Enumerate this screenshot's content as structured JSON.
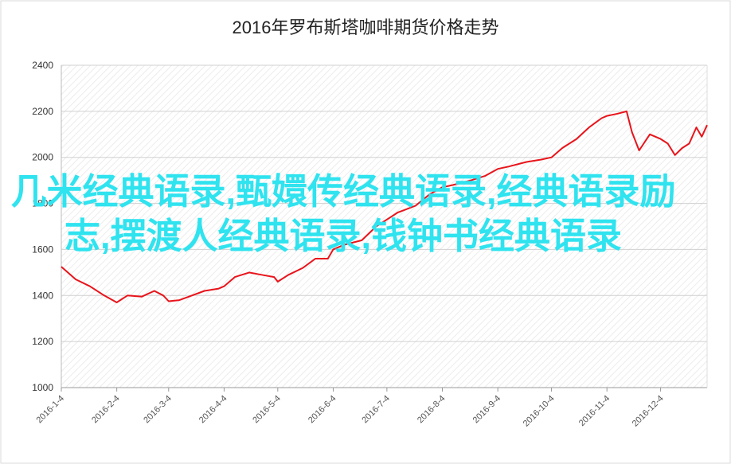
{
  "chart_data": {
    "type": "line",
    "title": "2016年罗布斯塔咖啡期货价格走势",
    "x": [
      "2016-1-4",
      "2016-1-12",
      "2016-1-20",
      "2016-1-28",
      "2016-2-4",
      "2016-2-10",
      "2016-2-18",
      "2016-2-25",
      "2016-3-1",
      "2016-3-4",
      "2016-3-10",
      "2016-3-17",
      "2016-3-24",
      "2016-4-1",
      "2016-4-4",
      "2016-4-10",
      "2016-4-18",
      "2016-4-25",
      "2016-5-2",
      "2016-5-4",
      "2016-5-10",
      "2016-5-18",
      "2016-5-25",
      "2016-6-1",
      "2016-6-4",
      "2016-6-10",
      "2016-6-20",
      "2016-6-28",
      "2016-7-4",
      "2016-7-10",
      "2016-7-20",
      "2016-7-28",
      "2016-8-4",
      "2016-8-10",
      "2016-8-20",
      "2016-8-28",
      "2016-9-4",
      "2016-9-10",
      "2016-9-20",
      "2016-9-28",
      "2016-10-4",
      "2016-10-10",
      "2016-10-18",
      "2016-10-25",
      "2016-11-1",
      "2016-11-4",
      "2016-11-10",
      "2016-11-15",
      "2016-11-18",
      "2016-11-22",
      "2016-11-28",
      "2016-12-4",
      "2016-12-8",
      "2016-12-12",
      "2016-12-16",
      "2016-12-20",
      "2016-12-24",
      "2016-12-27",
      "2016-12-30"
    ],
    "series": [
      {
        "color": "#e8141b",
        "values": [
          1525,
          1470,
          1440,
          1400,
          1370,
          1400,
          1395,
          1420,
          1400,
          1375,
          1380,
          1400,
          1420,
          1430,
          1440,
          1480,
          1500,
          1490,
          1480,
          1460,
          1490,
          1520,
          1560,
          1560,
          1600,
          1620,
          1640,
          1700,
          1730,
          1760,
          1790,
          1840,
          1870,
          1880,
          1900,
          1920,
          1950,
          1960,
          1980,
          1990,
          2000,
          2040,
          2080,
          2130,
          2170,
          2180,
          2190,
          2200,
          2110,
          2030,
          2100,
          2080,
          2060,
          2010,
          2040,
          2060,
          2130,
          2090,
          2140
        ]
      }
    ],
    "xlim": [
      "2016-1-4",
      "2016-12-30"
    ],
    "xticks": [
      "2016-1-4",
      "2016-2-4",
      "2016-3-4",
      "2016-4-4",
      "2016-5-4",
      "2016-6-4",
      "2016-7-4",
      "2016-8-4",
      "2016-9-4",
      "2016-10-4",
      "2016-11-4",
      "2016-12-4"
    ],
    "ylim": [
      1000,
      2400
    ],
    "yticks": [
      1000,
      1200,
      1400,
      1600,
      1800,
      2000,
      2200,
      2400
    ],
    "grid": true
  },
  "overlay_text": "几米经典语录,甄嬛传经典语录,经典语录励志,摆渡人经典语录,钱钟书经典语录"
}
